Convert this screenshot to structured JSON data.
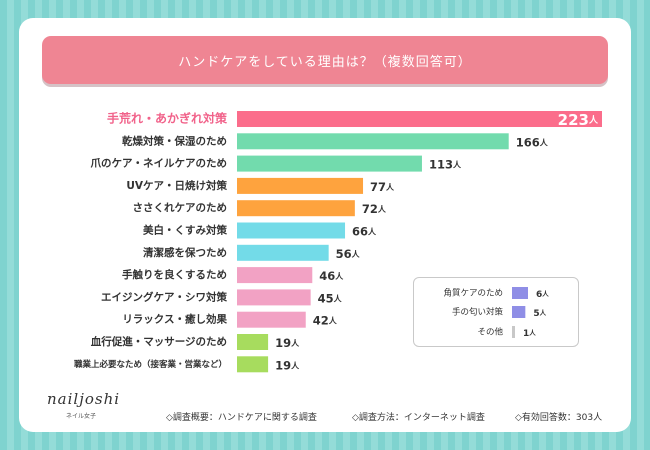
{
  "title": "ハンドケアをしている理由は？（複数回答可）",
  "logo": {
    "name": "nailjoshi",
    "sub": "ネイル女子"
  },
  "footer": {
    "survey": "◇調査概要：ハンドケアに関する調査",
    "method": "◇調査方法：インターネット調査",
    "respondents": "◇有効回答数：303人"
  },
  "colors": {
    "pink": "#fb6d8b",
    "green": "#72dbad",
    "orange": "#fea33e",
    "cyan": "#73dbe8",
    "lightpink": "#f2a2c4",
    "lime": "#a7dc5e",
    "purple": "#8f8ee6",
    "gray": "#c8c8c8",
    "highlight": "#f1628a"
  },
  "chart_data": [
    {
      "type": "bar",
      "orientation": "horizontal",
      "title": "ハンドケアをしている理由は？（複数回答可）",
      "unit": "人",
      "categories": [
        "手荒れ・あかぎれ対策",
        "乾燥対策・保湿のため",
        "爪のケア・ネイルケアのため",
        "UVケア・日焼け対策",
        "ささくれケアのため",
        "美白・くすみ対策",
        "清潔感を保つため",
        "手触りを良くするため",
        "エイジングケア・シワ対策",
        "リラックス・癒し効果",
        "血行促進・マッサージのため",
        "職業上必要なため（接客業・営業など）"
      ],
      "values": [
        223,
        166,
        113,
        77,
        72,
        66,
        56,
        46,
        45,
        42,
        19,
        19
      ],
      "bar_colors": [
        "pink",
        "green",
        "green",
        "orange",
        "orange",
        "cyan",
        "cyan",
        "lightpink",
        "lightpink",
        "lightpink",
        "lime",
        "lime"
      ],
      "grid": false,
      "legend": "none"
    },
    {
      "type": "bar",
      "orientation": "horizontal",
      "unit": "人",
      "categories": [
        "角質ケアのため",
        "手の匂い対策",
        "その他"
      ],
      "values": [
        6,
        5,
        1
      ],
      "bar_colors": [
        "purple",
        "purple",
        "gray"
      ],
      "grid": false,
      "legend": "none"
    }
  ]
}
